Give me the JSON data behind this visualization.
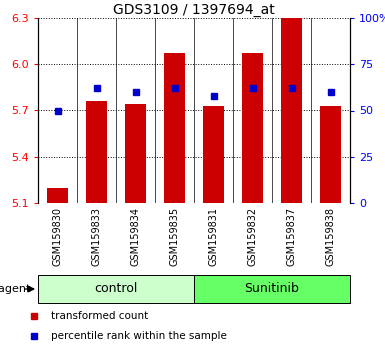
{
  "title": "GDS3109 / 1397694_at",
  "samples": [
    "GSM159830",
    "GSM159833",
    "GSM159834",
    "GSM159835",
    "GSM159831",
    "GSM159832",
    "GSM159837",
    "GSM159838"
  ],
  "groups": [
    "control",
    "control",
    "control",
    "control",
    "Sunitinib",
    "Sunitinib",
    "Sunitinib",
    "Sunitinib"
  ],
  "transformed_counts": [
    5.2,
    5.76,
    5.74,
    6.07,
    5.73,
    6.07,
    6.3,
    5.73
  ],
  "percentile_ranks": [
    50,
    62,
    60,
    62,
    58,
    62,
    62,
    60
  ],
  "ymin": 5.1,
  "ymax": 6.3,
  "yticks": [
    5.1,
    5.4,
    5.7,
    6.0,
    6.3
  ],
  "right_yticks": [
    0,
    25,
    50,
    75,
    100
  ],
  "right_ytick_labels": [
    "0",
    "25",
    "50",
    "75",
    "100%"
  ],
  "bar_color": "#CC0000",
  "blue_color": "#0000CC",
  "control_color": "#CCFFCC",
  "sunitinib_color": "#66FF66",
  "label_bg_color": "#C8C8C8",
  "title_fontsize": 10,
  "tick_fontsize": 8,
  "legend_items": [
    "transformed count",
    "percentile rank within the sample"
  ]
}
